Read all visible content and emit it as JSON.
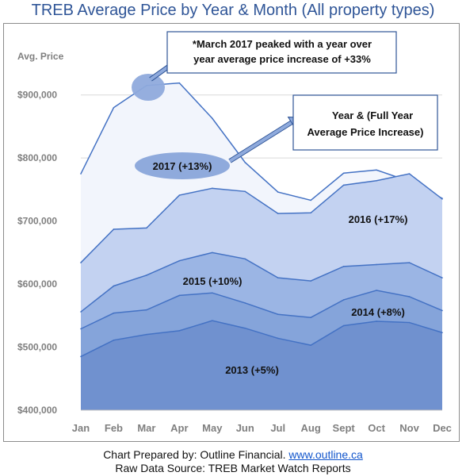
{
  "title": "TREB Average Price by Year & Month (All property types)",
  "footer": {
    "line1_prefix": "Chart Prepared by: Outline Financial. ",
    "line1_link": "www.outline.ca",
    "line2": "Raw Data Source: TREB Market Watch Reports"
  },
  "colors": {
    "title": "#2F5597",
    "gridline": "#d9d9d9",
    "axis_text": "#7f7f7f",
    "line": "#4472C4",
    "callout_fill": "#8FAADC",
    "callout_border": "#2F5597",
    "fills": [
      "#7091CF",
      "#85A4DA",
      "#9BB5E4",
      "#C3D2F1",
      "#F2F5FC"
    ]
  },
  "chart_data": {
    "type": "area",
    "ylabel": "Avg. Price",
    "ylim": [
      400000,
      950000
    ],
    "yticks": [
      400000,
      500000,
      600000,
      700000,
      800000,
      900000
    ],
    "ytick_labels": [
      "$400,000",
      "$500,000",
      "$600,000",
      "$700,000",
      "$800,000",
      "$900,000"
    ],
    "grid": true,
    "categories": [
      "Jan",
      "Feb",
      "Mar",
      "Apr",
      "May",
      "Jun",
      "Jul",
      "Aug",
      "Sept",
      "Oct",
      "Nov",
      "Dec"
    ],
    "series": [
      {
        "name": "2013",
        "values": [
          485000,
          511000,
          520000,
          526000,
          542000,
          530000,
          514000,
          503000,
          534000,
          541000,
          539000,
          523000
        ]
      },
      {
        "name": "2014",
        "values": [
          529000,
          554000,
          559000,
          582000,
          586000,
          570000,
          552000,
          547000,
          575000,
          590000,
          580000,
          558000
        ]
      },
      {
        "name": "2015",
        "values": [
          556000,
          597000,
          614000,
          637000,
          650000,
          640000,
          610000,
          605000,
          628000,
          631000,
          634000,
          610000
        ]
      },
      {
        "name": "2016",
        "values": [
          634000,
          687000,
          689000,
          741000,
          752000,
          747000,
          712000,
          713000,
          757000,
          764000,
          775000,
          735000
        ]
      },
      {
        "name": "2017",
        "values": [
          775000,
          880000,
          915000,
          919000,
          863000,
          793000,
          746000,
          733000,
          776000,
          781000,
          763000,
          736000
        ]
      }
    ],
    "area_labels": [
      {
        "series": "2013",
        "text": "2013 (+5%)"
      },
      {
        "series": "2014",
        "text": "2014 (+8%)"
      },
      {
        "series": "2015",
        "text": "2015 (+10%)"
      },
      {
        "series": "2016",
        "text": "2016 (+17%)"
      },
      {
        "series": "2017",
        "text": "2017 (+13%)"
      }
    ],
    "annotations": [
      {
        "text_lines": [
          "*March 2017 peaked with a year over",
          "year average price increase of +33%"
        ]
      },
      {
        "text_lines": [
          "Year & (Full Year",
          "Average Price Increase)"
        ]
      }
    ]
  }
}
